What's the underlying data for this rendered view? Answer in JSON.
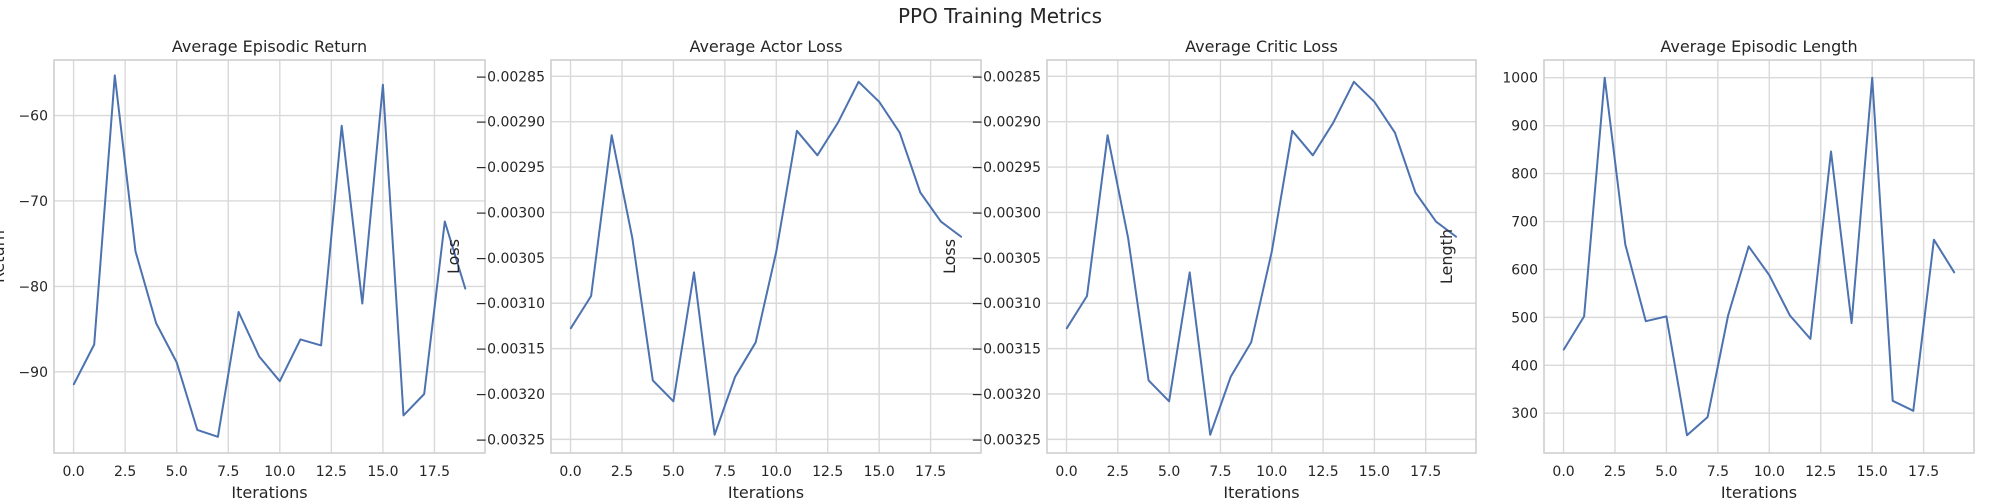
{
  "figure": {
    "title": "PPO Training Metrics"
  },
  "colors": {
    "line": "#4c72b0",
    "grid": "#d9d9d9",
    "frame": "#cccccc",
    "text": "#262626"
  },
  "chart_data": [
    {
      "type": "line",
      "title": "Average Episodic Return",
      "xlabel": "Iterations",
      "ylabel": "Return",
      "grid": true,
      "xlim": [
        -0.95,
        19.95
      ],
      "ylim": [
        -99.5,
        -53.5
      ],
      "xticks": [
        0.0,
        2.5,
        5.0,
        7.5,
        10.0,
        12.5,
        15.0,
        17.5
      ],
      "xtick_labels": [
        "0.0",
        "2.5",
        "5.0",
        "7.5",
        "10.0",
        "12.5",
        "15.0",
        "17.5"
      ],
      "yticks": [
        -90,
        -80,
        -70,
        -60
      ],
      "ytick_labels": [
        "−90",
        "−80",
        "−70",
        "−60"
      ],
      "x": [
        0,
        1,
        2,
        3,
        4,
        5,
        6,
        7,
        8,
        9,
        10,
        11,
        12,
        13,
        14,
        15,
        16,
        17,
        18,
        19
      ],
      "y": [
        -91.5,
        -86.8,
        -55.3,
        -75.9,
        -84.3,
        -88.9,
        -96.8,
        -97.6,
        -83.0,
        -88.2,
        -91.1,
        -86.2,
        -86.9,
        -61.2,
        -82.0,
        -56.4,
        -95.1,
        -92.6,
        -72.4,
        -80.3
      ]
    },
    {
      "type": "line",
      "title": "Average Actor Loss",
      "xlabel": "Iterations",
      "ylabel": "Loss",
      "grid": true,
      "xlim": [
        -0.95,
        19.95
      ],
      "ylim": [
        -0.003265,
        -0.002832
      ],
      "xticks": [
        0.0,
        2.5,
        5.0,
        7.5,
        10.0,
        12.5,
        15.0,
        17.5
      ],
      "xtick_labels": [
        "0.0",
        "2.5",
        "5.0",
        "7.5",
        "10.0",
        "12.5",
        "15.0",
        "17.5"
      ],
      "yticks": [
        -0.00325,
        -0.0032,
        -0.00315,
        -0.0031,
        -0.00305,
        -0.003,
        -0.00295,
        -0.0029,
        -0.00285
      ],
      "ytick_labels": [
        "−0.00325",
        "−0.00320",
        "−0.00315",
        "−0.00310",
        "−0.00305",
        "−0.00300",
        "−0.00295",
        "−0.00290",
        "−0.00285"
      ],
      "x": [
        0,
        1,
        2,
        3,
        4,
        5,
        6,
        7,
        8,
        9,
        10,
        11,
        12,
        13,
        14,
        15,
        16,
        17,
        18,
        19
      ],
      "y": [
        -0.003128,
        -0.003092,
        -0.002915,
        -0.003028,
        -0.003185,
        -0.003208,
        -0.003066,
        -0.003245,
        -0.003181,
        -0.003143,
        -0.003043,
        -0.00291,
        -0.002937,
        -0.002901,
        -0.002856,
        -0.002878,
        -0.002912,
        -0.002978,
        -0.00301,
        -0.003027
      ]
    },
    {
      "type": "line",
      "title": "Average Critic Loss",
      "xlabel": "Iterations",
      "ylabel": "Loss",
      "grid": true,
      "xlim": [
        -0.95,
        19.95
      ],
      "ylim": [
        -0.003265,
        -0.002832
      ],
      "xticks": [
        0.0,
        2.5,
        5.0,
        7.5,
        10.0,
        12.5,
        15.0,
        17.5
      ],
      "xtick_labels": [
        "0.0",
        "2.5",
        "5.0",
        "7.5",
        "10.0",
        "12.5",
        "15.0",
        "17.5"
      ],
      "yticks": [
        -0.00325,
        -0.0032,
        -0.00315,
        -0.0031,
        -0.00305,
        -0.003,
        -0.00295,
        -0.0029,
        -0.00285
      ],
      "ytick_labels": [
        "−0.00325",
        "−0.00320",
        "−0.00315",
        "−0.00310",
        "−0.00305",
        "−0.00300",
        "−0.00295",
        "−0.00290",
        "−0.00285"
      ],
      "x": [
        0,
        1,
        2,
        3,
        4,
        5,
        6,
        7,
        8,
        9,
        10,
        11,
        12,
        13,
        14,
        15,
        16,
        17,
        18,
        19
      ],
      "y": [
        -0.003128,
        -0.003092,
        -0.002915,
        -0.003028,
        -0.003185,
        -0.003208,
        -0.003066,
        -0.003245,
        -0.003181,
        -0.003143,
        -0.003043,
        -0.00291,
        -0.002937,
        -0.002901,
        -0.002856,
        -0.002878,
        -0.002912,
        -0.002978,
        -0.00301,
        -0.003027
      ]
    },
    {
      "type": "line",
      "title": "Average Episodic Length",
      "xlabel": "Iterations",
      "ylabel": "Length",
      "grid": true,
      "xlim": [
        -0.95,
        19.95
      ],
      "ylim": [
        217,
        1037
      ],
      "xticks": [
        0.0,
        2.5,
        5.0,
        7.5,
        10.0,
        12.5,
        15.0,
        17.5
      ],
      "xtick_labels": [
        "0.0",
        "2.5",
        "5.0",
        "7.5",
        "10.0",
        "12.5",
        "15.0",
        "17.5"
      ],
      "yticks": [
        300,
        400,
        500,
        600,
        700,
        800,
        900,
        1000
      ],
      "ytick_labels": [
        "300",
        "400",
        "500",
        "600",
        "700",
        "800",
        "900",
        "1000"
      ],
      "x": [
        0,
        1,
        2,
        3,
        4,
        5,
        6,
        7,
        8,
        9,
        10,
        11,
        12,
        13,
        14,
        15,
        16,
        17,
        18,
        19
      ],
      "y": [
        432,
        502,
        1000,
        652,
        492,
        502,
        254,
        292,
        504,
        648,
        588,
        504,
        455,
        846,
        488,
        1000,
        326,
        305,
        662,
        593
      ]
    }
  ]
}
